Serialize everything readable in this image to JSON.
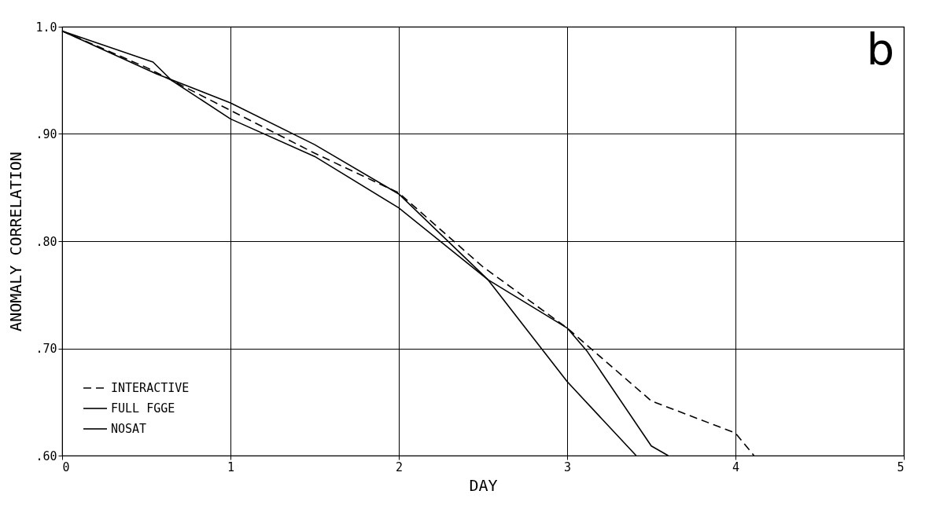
{
  "chart_data": {
    "type": "line",
    "xlabel": "DAY",
    "ylabel": "ANOMALY CORRELATION",
    "annotations": [
      "b"
    ],
    "xlim": [
      0,
      5
    ],
    "xticks": [
      0,
      1,
      2,
      3,
      4,
      5
    ],
    "ylim": [
      0.6,
      1.0
    ],
    "yticks": [
      {
        "value": 0.6,
        "label": ".60"
      },
      {
        "value": 0.7,
        "label": ".70"
      },
      {
        "value": 0.8,
        "label": ".80"
      },
      {
        "value": 0.9,
        "label": ".90"
      },
      {
        "value": 1.0,
        "label": "1.0"
      }
    ],
    "grid": true,
    "legend": "bottom left",
    "marker": "none",
    "series": [
      {
        "name": "INTERACTIVE",
        "color": "#000000",
        "line_style": "dashed",
        "x": [
          0,
          0.5,
          1.0,
          1.5,
          2.0,
          2.5,
          3.0,
          3.5,
          4.0,
          4.11
        ],
        "values": [
          0.996,
          0.962,
          0.922,
          0.882,
          0.845,
          0.776,
          0.719,
          0.651,
          0.621,
          0.6
        ]
      },
      {
        "name": "FULL FGGE",
        "color": "#000000",
        "line_style": "solid",
        "x": [
          0,
          0.56,
          1.0,
          1.5,
          2.0,
          2.53,
          3.0,
          3.41
        ],
        "values": [
          0.996,
          0.956,
          0.929,
          0.89,
          0.844,
          0.764,
          0.669,
          0.6
        ]
      },
      {
        "name": "NOSAT",
        "color": "#000000",
        "line_style": "solid",
        "x": [
          0,
          0.54,
          0.65,
          1.0,
          1.5,
          2.0,
          2.53,
          3.0,
          3.12,
          3.5,
          3.6
        ],
        "values": [
          0.996,
          0.967,
          0.95,
          0.914,
          0.879,
          0.831,
          0.764,
          0.719,
          0.697,
          0.609,
          0.6
        ]
      }
    ]
  }
}
